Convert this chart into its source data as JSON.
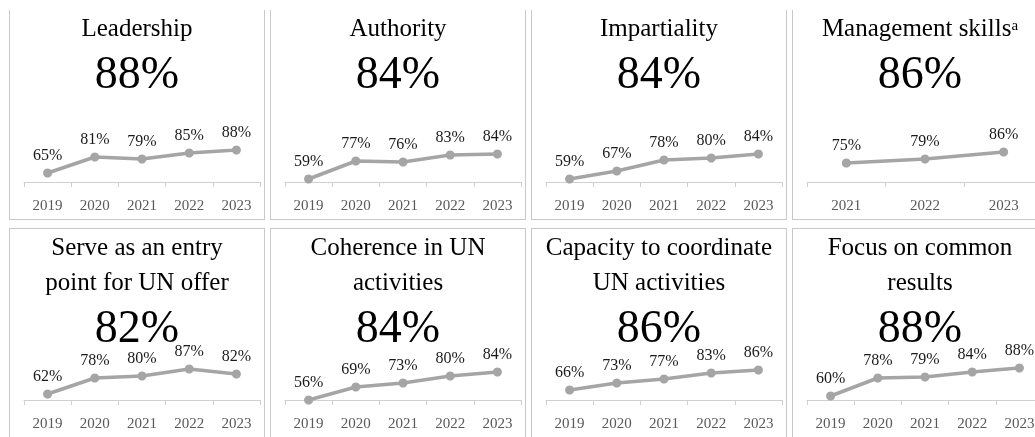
{
  "chart_data": [
    {
      "type": "line",
      "title": "Leadership",
      "subtitle": "88%",
      "categories": [
        "2019",
        "2020",
        "2021",
        "2022",
        "2023"
      ],
      "values": [
        65,
        81,
        79,
        85,
        88
      ],
      "value_labels": [
        "65%",
        "81%",
        "79%",
        "85%",
        "88%"
      ],
      "color": "#a5a5a5",
      "marker": "circle",
      "line_style": "solid",
      "tick_labels": "x"
    },
    {
      "type": "line",
      "title": "Authority",
      "subtitle": "84%",
      "categories": [
        "2019",
        "2020",
        "2021",
        "2022",
        "2023"
      ],
      "values": [
        59,
        77,
        76,
        83,
        84
      ],
      "value_labels": [
        "59%",
        "77%",
        "76%",
        "83%",
        "84%"
      ],
      "color": "#a5a5a5",
      "marker": "circle",
      "line_style": "solid",
      "tick_labels": "x"
    },
    {
      "type": "line",
      "title": "Impartiality",
      "subtitle": "84%",
      "categories": [
        "2019",
        "2020",
        "2021",
        "2022",
        "2023"
      ],
      "values": [
        59,
        67,
        78,
        80,
        84
      ],
      "value_labels": [
        "59%",
        "67%",
        "78%",
        "80%",
        "84%"
      ],
      "color": "#a5a5a5",
      "marker": "circle",
      "line_style": "solid",
      "tick_labels": "x"
    },
    {
      "type": "line",
      "title": "Management skills$^{a}$",
      "subtitle": "86%",
      "categories": [
        "2021",
        "2022",
        "2023"
      ],
      "values": [
        75,
        79,
        86
      ],
      "value_labels": [
        "75%",
        "79%",
        "86%"
      ],
      "color": "#a5a5a5",
      "marker": "circle",
      "line_style": "solid",
      "tick_labels": "x"
    },
    {
      "type": "line",
      "title": "Serve as an entry\npoint for UN offer",
      "subtitle": "82%",
      "categories": [
        "2019",
        "2020",
        "2021",
        "2022",
        "2023"
      ],
      "values": [
        62,
        78,
        80,
        87,
        82
      ],
      "value_labels": [
        "62%",
        "78%",
        "80%",
        "87%",
        "82%"
      ],
      "color": "#a5a5a5",
      "marker": "circle",
      "line_style": "solid",
      "tick_labels": "x"
    },
    {
      "type": "line",
      "title": "Coherence in UN\nactivities",
      "subtitle": "84%",
      "categories": [
        "2019",
        "2020",
        "2021",
        "2022",
        "2023"
      ],
      "values": [
        56,
        69,
        73,
        80,
        84
      ],
      "value_labels": [
        "56%",
        "69%",
        "73%",
        "80%",
        "84%"
      ],
      "color": "#a5a5a5",
      "marker": "circle",
      "line_style": "solid",
      "tick_labels": "x"
    },
    {
      "type": "line",
      "title": "Capacity to coordinate\nUN activities",
      "subtitle": "86%",
      "categories": [
        "2019",
        "2020",
        "2021",
        "2022",
        "2023"
      ],
      "values": [
        66,
        73,
        77,
        83,
        86
      ],
      "value_labels": [
        "66%",
        "73%",
        "77%",
        "83%",
        "86%"
      ],
      "color": "#a5a5a5",
      "marker": "circle",
      "line_style": "solid",
      "tick_labels": "x"
    },
    {
      "type": "line",
      "title": "Focus on common\nresults",
      "subtitle": "88%",
      "categories": [
        "2019",
        "2020",
        "2021",
        "2022",
        "2023"
      ],
      "values": [
        60,
        78,
        79,
        84,
        88
      ],
      "value_labels": [
        "60%",
        "78%",
        "79%",
        "84%",
        "88%"
      ],
      "color": "#a5a5a5",
      "marker": "circle",
      "line_style": "solid",
      "tick_labels": "x"
    }
  ]
}
